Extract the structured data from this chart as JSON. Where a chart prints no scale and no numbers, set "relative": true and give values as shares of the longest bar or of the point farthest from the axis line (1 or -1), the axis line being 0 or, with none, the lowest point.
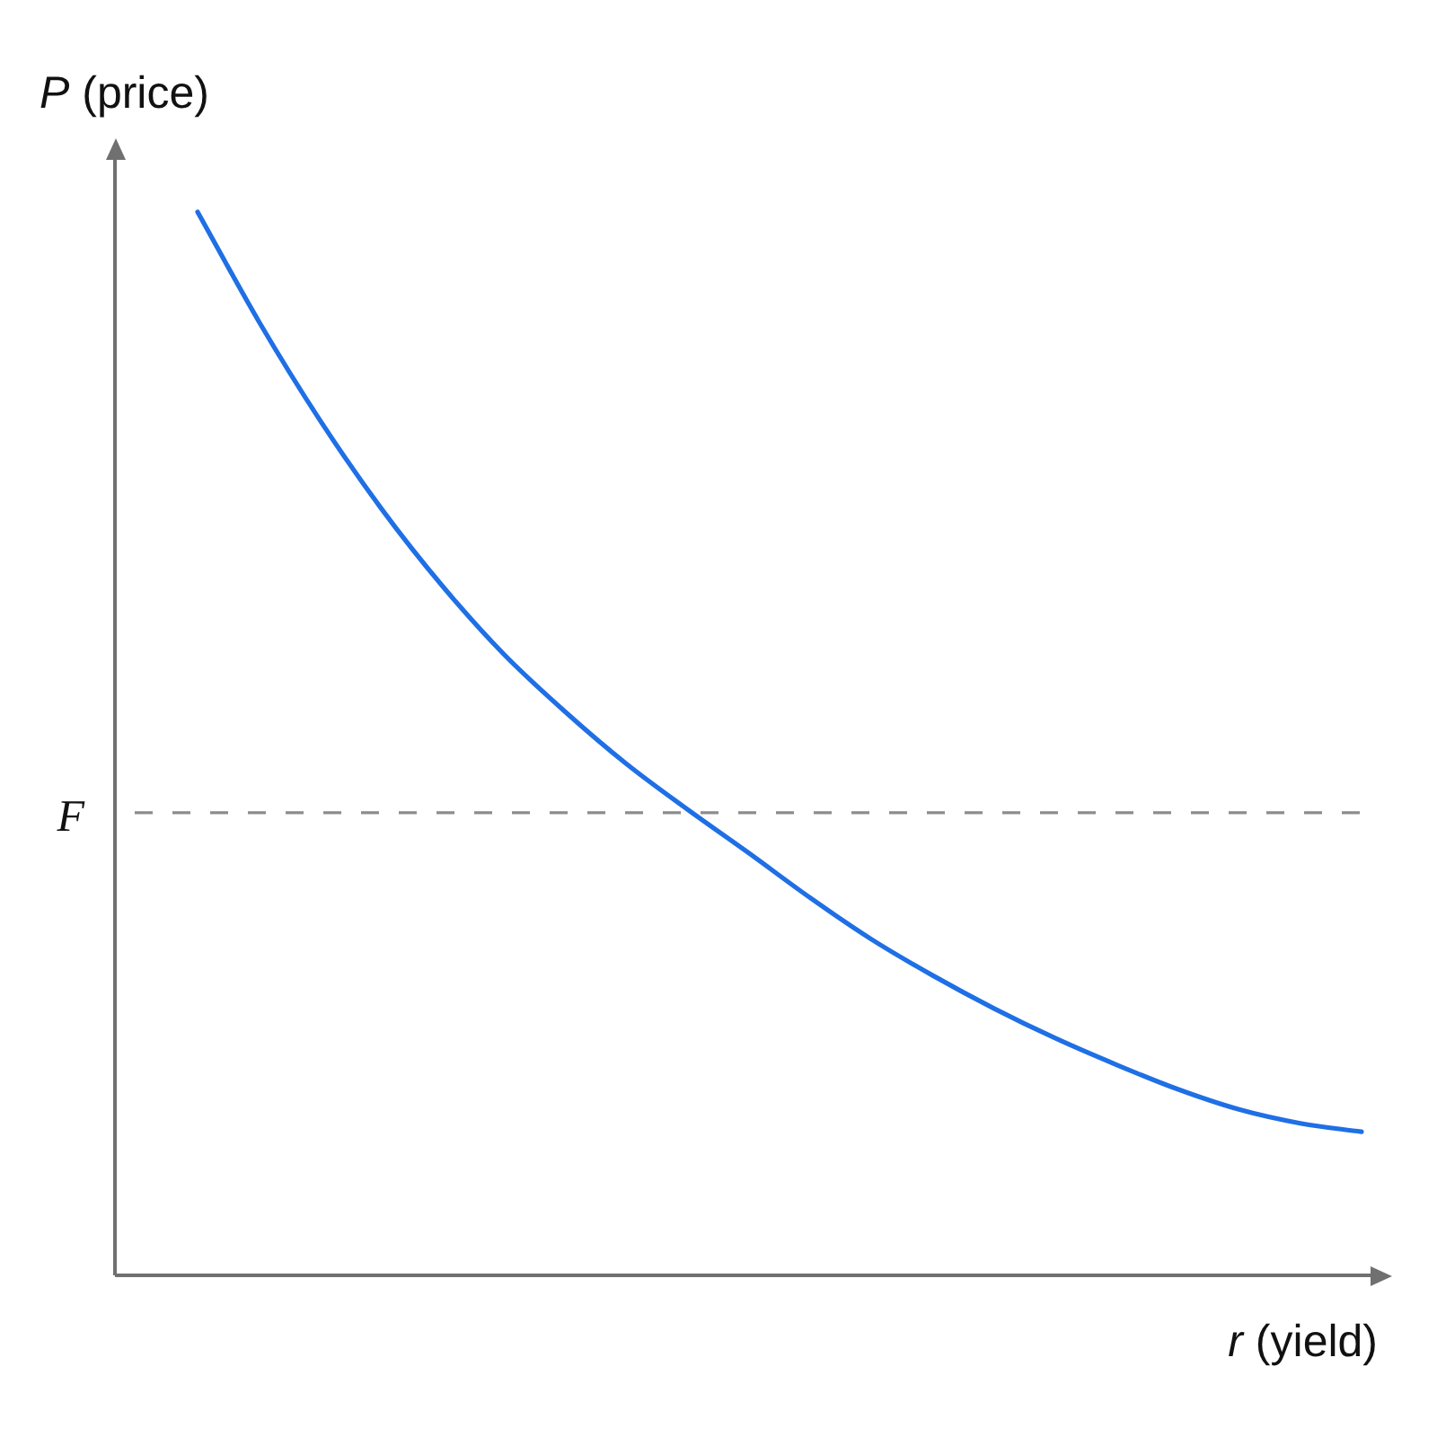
{
  "chart_data": {
    "type": "line",
    "xlabel": "r (yield)",
    "ylabel": "P (price)",
    "categories": [
      null,
      null,
      null,
      null,
      null,
      null,
      null,
      null,
      null,
      null,
      null,
      null,
      null,
      null,
      null,
      null,
      null,
      null,
      null,
      null
    ],
    "series": [
      {
        "color": "#1f6fe5",
        "values": [
          1,
          0.897,
          0.804,
          0.721,
          0.648,
          0.584,
          0.53,
          0.481,
          0.438,
          0.397,
          0.355,
          0.316,
          0.282,
          0.251,
          0.223,
          0.198,
          0.175,
          0.156,
          0.143,
          0.135
        ]
      }
    ],
    "relative": true,
    "ref_lines": [
      {
        "axis": "y",
        "value": 0.435,
        "label": "F",
        "color": "#8c8c8c",
        "line_style": "dashed"
      }
    ],
    "line_style": "solid"
  }
}
